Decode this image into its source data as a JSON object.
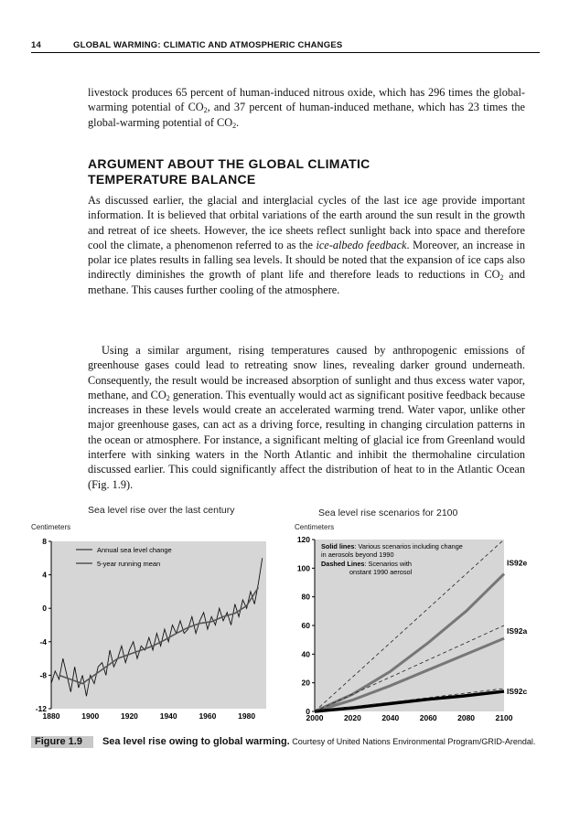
{
  "running_head": {
    "page_number": "14",
    "title": "GLOBAL WARMING: CLIMATIC AND ATMOSPHERIC CHANGES"
  },
  "paragraph1": {
    "a": "livestock produces 65 percent of human-induced nitrous oxide, which has 296 times the global-warming potential of CO",
    "b": ", and 37 percent of human-induced methane, which has 23 times the global-warming potential of CO",
    "c": "."
  },
  "section_heading": "ARGUMENT ABOUT THE GLOBAL CLIMATIC TEMPERATURE BALANCE",
  "paragraph2": {
    "a": "As discussed earlier, the glacial and interglacial cycles of the last ice age provide important information. It is believed that orbital variations of the earth around the sun result in the growth and retreat of ice sheets. However, the ice sheets reflect sunlight back into space and therefore cool the climate, a phenomenon referred to as the ",
    "italic": "ice-albedo feedback",
    "b": ". Moreover, an increase in polar ice plates results in falling sea levels. It should be noted that the expansion of ice caps also indirectly diminishes the growth of plant life and therefore leads to reductions in CO",
    "c": " and methane. This causes further cooling of the atmosphere."
  },
  "paragraph3": {
    "a": "Using a similar argument, rising temperatures caused by anthropogenic emissions of greenhouse gases could lead to retreating snow lines, revealing darker ground underneath. Consequently, the result would be increased absorption of sunlight and thus excess water vapor, methane, and CO",
    "b": " generation. This eventually would act as significant positive feedback because increases in these levels would create an accelerated warming trend. Water vapor, unlike other major greenhouse gases, can act as a driving force, resulting in changing circulation patterns in the ocean or atmosphere. For instance, a significant melting of glacial ice from Greenland would interfere with sinking waters in the North Atlantic and inhibit the thermohaline circulation discussed earlier. This could significantly affect the distribution of heat to in the Atlantic Ocean (Fig. 1.9)."
  },
  "subscript": "2",
  "figure": {
    "label": "Figure 1.9",
    "title": "Sea level rise owing to global warming.",
    "credit": " Courtesy of United Nations Environmental Program/GRID-Arendal."
  },
  "chart_data": [
    {
      "type": "line",
      "title": "Sea level rise over the last century",
      "ylabel": "Centimeters",
      "xlim": [
        1880,
        1990
      ],
      "ylim": [
        -12,
        8
      ],
      "x_ticks": [
        "1880",
        "1900",
        "1920",
        "1940",
        "1960",
        "1980"
      ],
      "y_ticks": [
        "8",
        "4",
        "0",
        "-4",
        "-8",
        "-12"
      ],
      "legend": [
        "Annual sea level change",
        "5-year running mean"
      ],
      "series": [
        {
          "name": "Annual sea level change",
          "x": [
            1880,
            1882,
            1884,
            1886,
            1888,
            1890,
            1892,
            1894,
            1896,
            1898,
            1900,
            1902,
            1904,
            1906,
            1908,
            1910,
            1912,
            1914,
            1916,
            1918,
            1920,
            1922,
            1924,
            1926,
            1928,
            1930,
            1932,
            1934,
            1936,
            1938,
            1940,
            1942,
            1944,
            1946,
            1948,
            1950,
            1952,
            1954,
            1956,
            1958,
            1960,
            1962,
            1964,
            1966,
            1968,
            1970,
            1972,
            1974,
            1976,
            1978,
            1980,
            1982,
            1984,
            1986,
            1988
          ],
          "values": [
            -9,
            -7.5,
            -8.5,
            -6,
            -8,
            -10,
            -7,
            -9.5,
            -8,
            -10.5,
            -8,
            -9,
            -7,
            -6.5,
            -8,
            -5,
            -7,
            -6,
            -4.5,
            -6.5,
            -5,
            -4,
            -6,
            -4.5,
            -5,
            -3.5,
            -5,
            -3,
            -4.5,
            -2.5,
            -4,
            -2,
            -3,
            -1.5,
            -3,
            -2.5,
            -1,
            -3,
            -1.5,
            -0.5,
            -2.5,
            -1,
            -2,
            0,
            -1.5,
            -0.5,
            -2,
            0.5,
            -1,
            1,
            0,
            2,
            0.5,
            3,
            6
          ]
        },
        {
          "name": "5-year running mean",
          "x": [
            1884,
            1890,
            1896,
            1902,
            1908,
            1914,
            1920,
            1926,
            1932,
            1938,
            1944,
            1950,
            1956,
            1962,
            1968,
            1974,
            1980,
            1986
          ],
          "values": [
            -8,
            -8.5,
            -9,
            -8,
            -7,
            -6,
            -5.5,
            -5,
            -4.5,
            -3.8,
            -3,
            -2.3,
            -1.8,
            -1.6,
            -1,
            -0.6,
            0.3,
            2.5
          ]
        }
      ]
    },
    {
      "type": "line",
      "title": "Sea level rise scenarios for 2100",
      "ylabel": "Centimeters",
      "xlim": [
        2000,
        2100
      ],
      "ylim": [
        0,
        120
      ],
      "x_ticks": [
        "2000",
        "2020",
        "2040",
        "2060",
        "2080",
        "2100"
      ],
      "y_ticks": [
        "120",
        "100",
        "80",
        "60",
        "40",
        "20",
        "0"
      ],
      "notes": [
        "Solid lines: Various scenarios including changes in aerosols beyond 1990",
        "Dashed Lines: Scenarios with constant 1990 aerosol"
      ],
      "series": [
        {
          "name": "IS92e",
          "style": "solid",
          "x": [
            2000,
            2020,
            2040,
            2060,
            2080,
            2100
          ],
          "values": [
            0,
            12,
            28,
            48,
            70,
            96
          ]
        },
        {
          "name": "IS92a",
          "style": "solid",
          "x": [
            2000,
            2020,
            2040,
            2060,
            2080,
            2100
          ],
          "values": [
            0,
            8,
            18,
            29,
            40,
            51
          ]
        },
        {
          "name": "IS92c",
          "style": "solid",
          "x": [
            2000,
            2020,
            2040,
            2060,
            2080,
            2100
          ],
          "values": [
            0,
            2.5,
            5.5,
            8.5,
            11,
            14
          ]
        },
        {
          "name": "IS92e",
          "style": "dashed",
          "x": [
            2000,
            2100
          ],
          "values": [
            0,
            120
          ]
        },
        {
          "name": "IS92a",
          "style": "dashed",
          "x": [
            2000,
            2100
          ],
          "values": [
            0,
            60
          ]
        },
        {
          "name": "IS92c",
          "style": "dashed",
          "x": [
            2000,
            2100
          ],
          "values": [
            0,
            16
          ]
        }
      ]
    }
  ]
}
